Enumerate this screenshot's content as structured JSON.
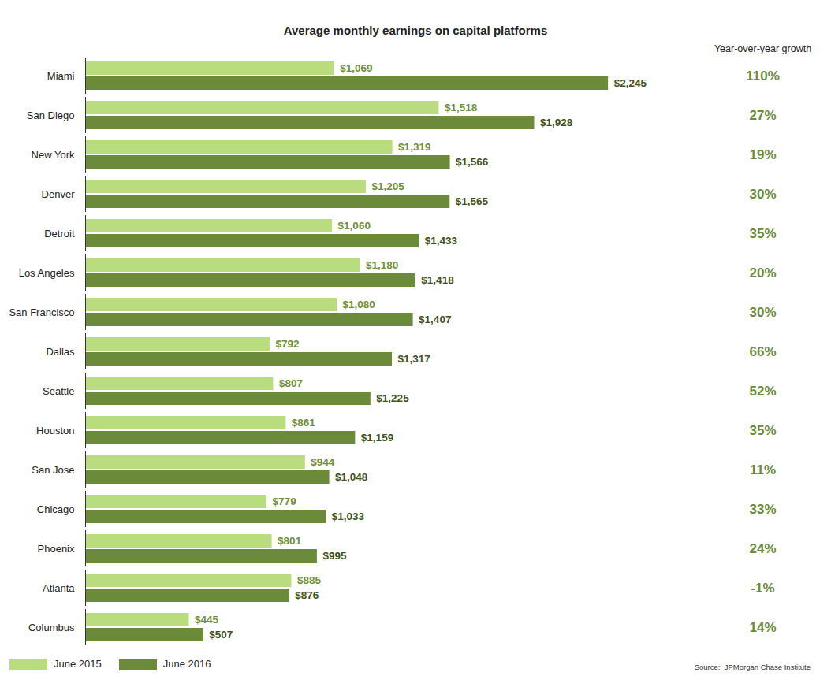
{
  "chart_data": {
    "type": "bar",
    "orientation": "horizontal",
    "title": "Average monthly earnings on capital platforms",
    "categories": [
      "Miami",
      "San Diego",
      "New York",
      "Denver",
      "Detroit",
      "Los Angeles",
      "San Francisco",
      "Dallas",
      "Seattle",
      "Houston",
      "San Jose",
      "Chicago",
      "Phoenix",
      "Atlanta",
      "Columbus"
    ],
    "series": [
      {
        "name": "June 2015",
        "color": "#b8dc7e",
        "values": [
          1069,
          1518,
          1319,
          1205,
          1060,
          1180,
          1080,
          792,
          807,
          861,
          944,
          779,
          801,
          885,
          445
        ],
        "value_labels": [
          "$1,069",
          "$1,518",
          "$1,319",
          "$1,205",
          "$1,060",
          "$1,180",
          "$1,080",
          "$792",
          "$807",
          "$861",
          "$944",
          "$779",
          "$801",
          "$885",
          "$445"
        ]
      },
      {
        "name": "June 2016",
        "color": "#6b8a3a",
        "values": [
          2245,
          1928,
          1566,
          1565,
          1433,
          1418,
          1407,
          1317,
          1225,
          1159,
          1048,
          1033,
          995,
          876,
          507
        ],
        "value_labels": [
          "$2,245",
          "$1,928",
          "$1,566",
          "$1,565",
          "$1,433",
          "$1,418",
          "$1,407",
          "$1,317",
          "$1,225",
          "$1,159",
          "$1,048",
          "$1,033",
          "$995",
          "$876",
          "$507"
        ]
      }
    ],
    "growth": {
      "title": "Year-over-year growth",
      "values": [
        110,
        27,
        19,
        30,
        35,
        20,
        30,
        66,
        52,
        35,
        11,
        33,
        24,
        -1,
        14
      ],
      "value_labels": [
        "110%",
        "27%",
        "19%",
        "30%",
        "35%",
        "20%",
        "30%",
        "66%",
        "52%",
        "35%",
        "11%",
        "33%",
        "24%",
        "-1%",
        "14%"
      ]
    },
    "xlim": [
      0,
      2600
    ],
    "data_labels": true,
    "tick_labels": "y",
    "grid": false,
    "legend": "bottom-left",
    "source": "Source:  JPMorgan Chase Institute"
  }
}
